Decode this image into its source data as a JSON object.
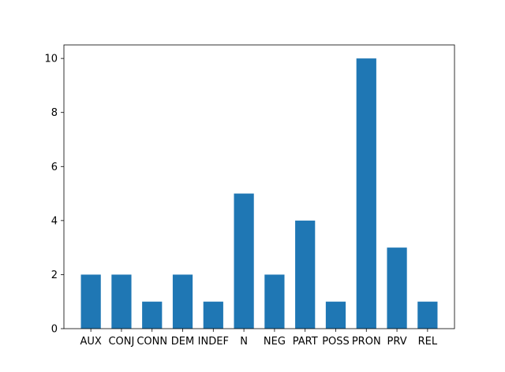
{
  "chart_data": {
    "type": "bar",
    "title": "",
    "xlabel": "",
    "ylabel": "",
    "categories": [
      "AUX",
      "CONJ",
      "CONN",
      "DEM",
      "INDEF",
      "N",
      "NEG",
      "PART",
      "POSS",
      "PRON",
      "PRV",
      "REL"
    ],
    "values": [
      2,
      2,
      1,
      2,
      1,
      5,
      2,
      4,
      1,
      10,
      3,
      1
    ],
    "ylim": [
      0,
      10.5
    ],
    "yticks": [
      0,
      2,
      4,
      6,
      8,
      10
    ],
    "grid": false,
    "legend": "none",
    "bar_color": "#1f77b4"
  }
}
